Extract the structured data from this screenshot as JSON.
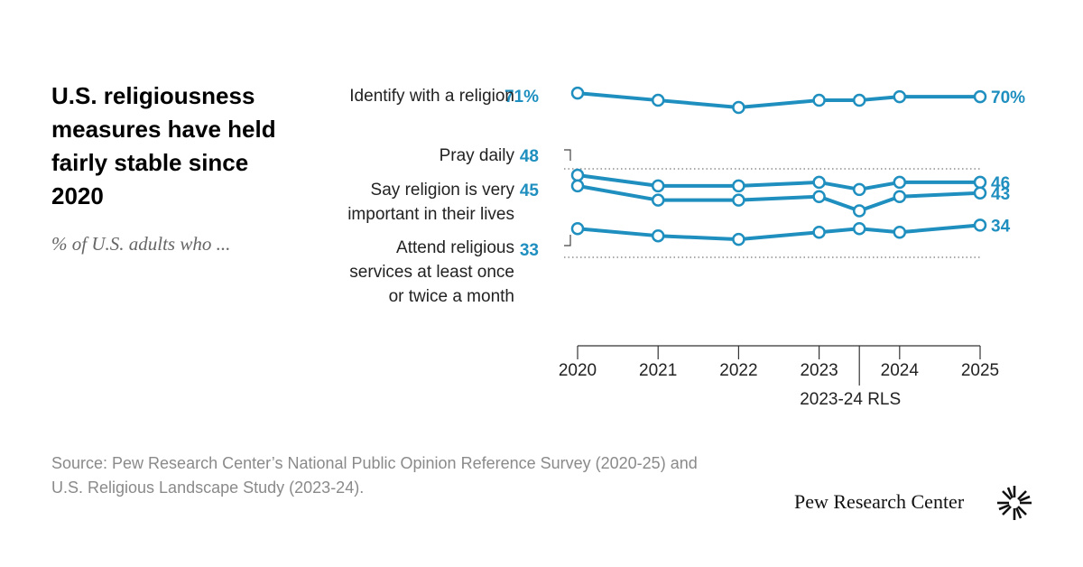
{
  "chart_data": {
    "type": "line",
    "title": "U.S. religiousness measures have held fairly stable since 2020",
    "subtitle": "% of U.S. adults who ...",
    "x": [
      2020,
      2021,
      2022,
      2023,
      2023.5,
      2024,
      2025
    ],
    "xlim": [
      2020,
      2025
    ],
    "xticks": [
      2020,
      2021,
      2022,
      2023,
      2024,
      2025
    ],
    "rls_tick": {
      "value": 2023.5,
      "label": "2023-24 RLS"
    },
    "ylim": [
      25,
      75
    ],
    "series": [
      {
        "name": "Identify with a religion",
        "color": "#1f8fbf",
        "values": [
          71,
          69,
          67,
          69,
          69,
          70,
          70
        ],
        "value_labels": [
          "71%",
          null,
          null,
          null,
          null,
          null,
          "70%"
        ]
      },
      {
        "name": "Pray daily",
        "color": "#1f8fbf",
        "values": [
          48,
          45,
          45,
          46,
          44,
          46,
          46
        ]
      },
      {
        "name": "Say religion is very important in their lives",
        "color": "#1f8fbf",
        "values": [
          45,
          41,
          41,
          42,
          38,
          42,
          43
        ]
      },
      {
        "name": "Attend religious services at least once or twice a month",
        "color": "#1f8fbf",
        "values": [
          33,
          31,
          30,
          32,
          33,
          32,
          34
        ]
      }
    ],
    "source": "Source: Pew Research Center’s National Public Opinion Reference Survey (2020-25) and U.S. Religious Landscape Study (2023-24).",
    "logo": "Pew Research Center"
  }
}
